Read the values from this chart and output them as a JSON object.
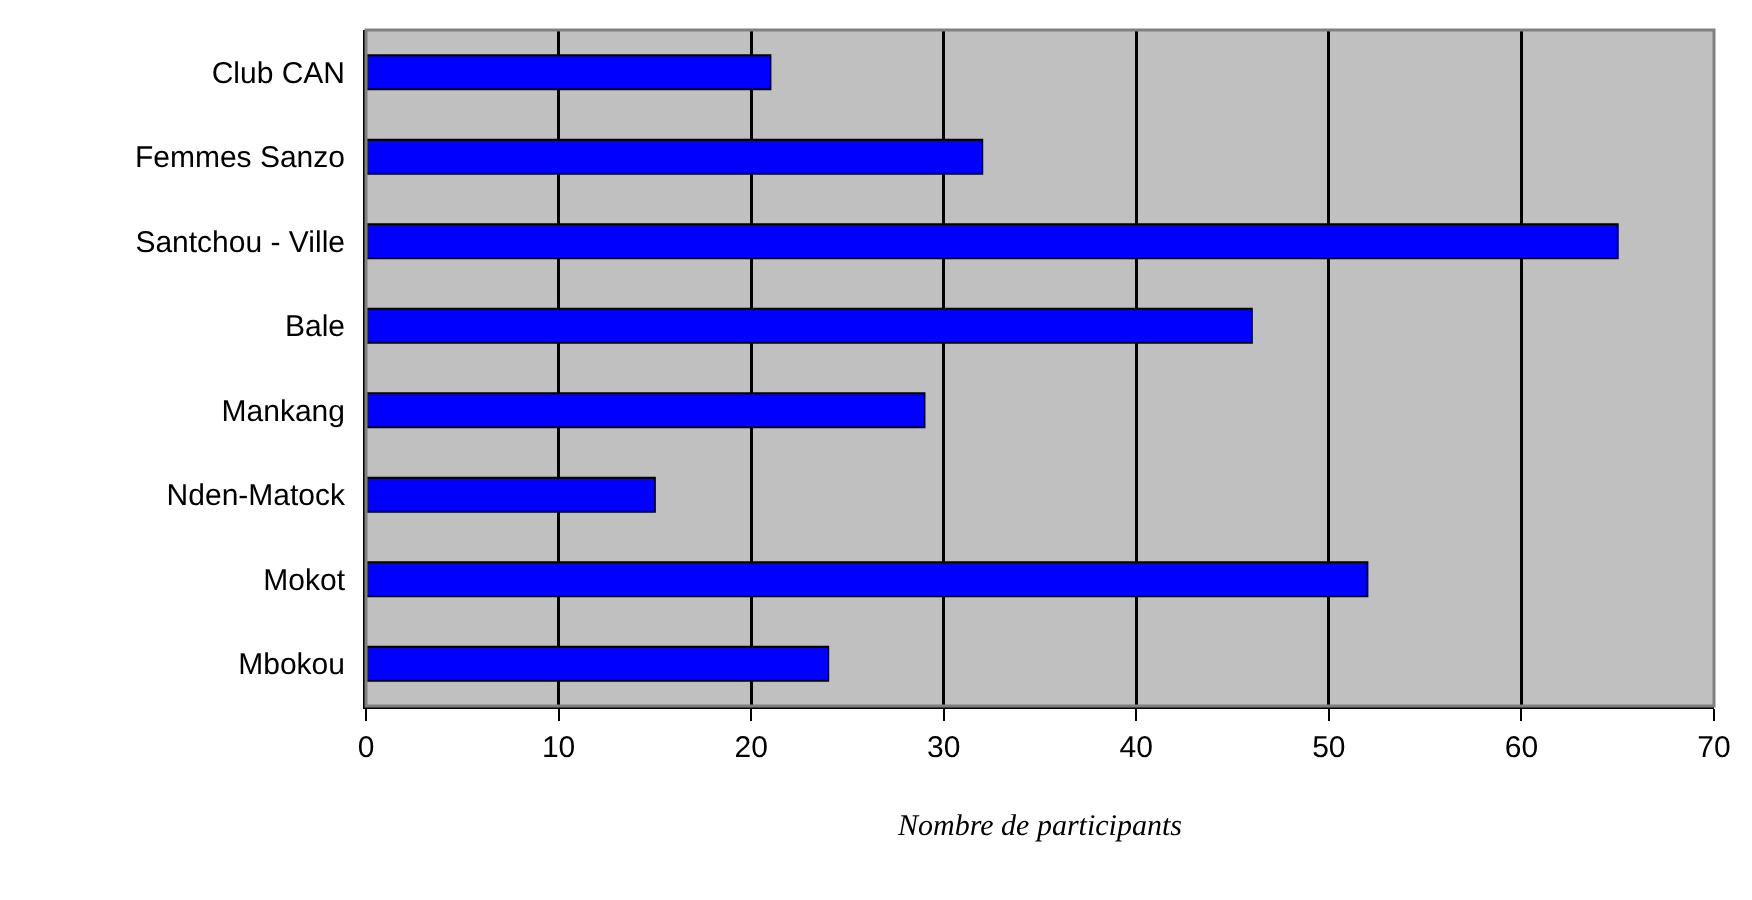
{
  "chart_data": {
    "type": "bar",
    "orientation": "horizontal",
    "xlabel": "Nombre de participants",
    "categories": [
      "Club CAN",
      "Femmes Sanzo",
      "Santchou - Ville",
      "Bale",
      "Mankang",
      "Nden-Matock",
      "Mokot",
      "Mbokou"
    ],
    "values": [
      21,
      32,
      65,
      46,
      29,
      15,
      52,
      24
    ],
    "color": "#0000ff",
    "xlim": [
      0,
      70
    ],
    "xticks": [
      0,
      10,
      20,
      30,
      40,
      50,
      60,
      70
    ],
    "grid": "x"
  }
}
